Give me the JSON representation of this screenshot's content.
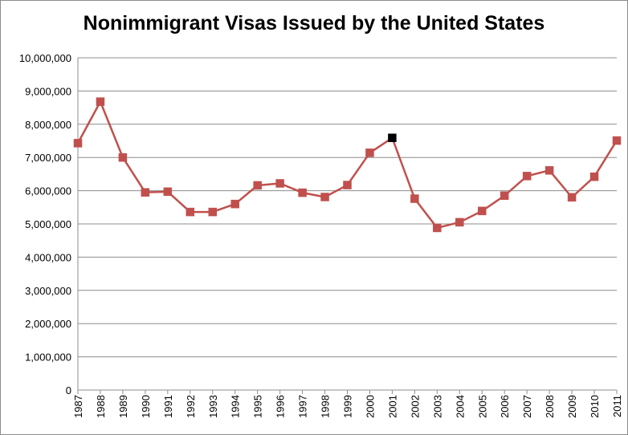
{
  "chart_data": {
    "type": "line",
    "title": "Nonimmigrant  Visas Issued by the United States",
    "xlabel": "",
    "ylabel": "",
    "categories": [
      "1987",
      "1988",
      "1989",
      "1990",
      "1991",
      "1992",
      "1993",
      "1994",
      "1995",
      "1996",
      "1997",
      "1998",
      "1999",
      "2000",
      "2001",
      "2002",
      "2003",
      "2004",
      "2005",
      "2006",
      "2007",
      "2008",
      "2009",
      "2010",
      "2011"
    ],
    "series": [
      {
        "values": [
          7430000,
          8680000,
          7000000,
          5950000,
          5970000,
          5360000,
          5360000,
          5600000,
          6160000,
          6220000,
          5940000,
          5810000,
          6170000,
          7140000,
          7590000,
          5760000,
          4880000,
          5050000,
          5390000,
          5850000,
          6440000,
          6610000,
          5800000,
          6420000,
          7510000
        ]
      }
    ],
    "highlight_index": 14,
    "ylim": [
      0,
      10000000
    ],
    "yticks": [
      0,
      1000000,
      2000000,
      3000000,
      4000000,
      5000000,
      6000000,
      7000000,
      8000000,
      9000000,
      10000000
    ],
    "ytick_labels": [
      "0",
      "1,000,000",
      "2,000,000",
      "3,000,000",
      "4,000,000",
      "5,000,000",
      "6,000,000",
      "7,000,000",
      "8,000,000",
      "9,000,000",
      "10,000,000"
    ],
    "grid": true,
    "legend": "none",
    "colors": {
      "line": "#C0504D",
      "marker": "#C0504D",
      "highlight_marker": "#000000",
      "grid": "#8C8C8C"
    }
  }
}
